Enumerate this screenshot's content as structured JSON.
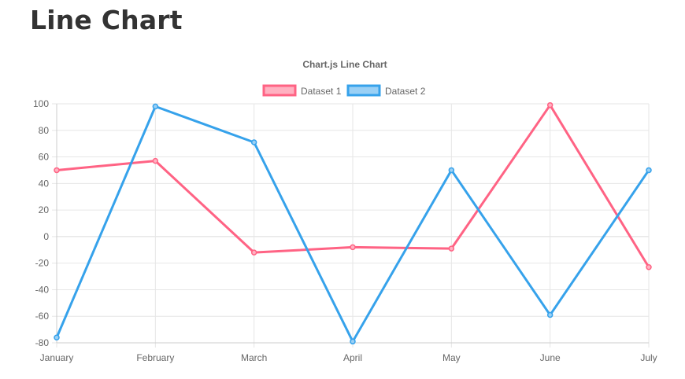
{
  "page": {
    "heading": "Line Chart"
  },
  "chart_data": {
    "type": "line",
    "title": "Chart.js Line Chart",
    "categories": [
      "January",
      "February",
      "March",
      "April",
      "May",
      "June",
      "July"
    ],
    "series": [
      {
        "name": "Dataset 1",
        "color": "#ff6384",
        "fill": "#ffb1c1",
        "values": [
          50,
          57,
          -12,
          -8,
          -9,
          99,
          -23
        ]
      },
      {
        "name": "Dataset 2",
        "color": "#36a2eb",
        "fill": "#9ad0f5",
        "values": [
          -76,
          98,
          71,
          -79,
          50,
          -59,
          50
        ]
      }
    ],
    "ylim": [
      -80,
      100
    ],
    "yticks": [
      100,
      80,
      60,
      40,
      20,
      0,
      -20,
      -40,
      -60,
      -80
    ],
    "grid": true,
    "legend_position": "top"
  }
}
